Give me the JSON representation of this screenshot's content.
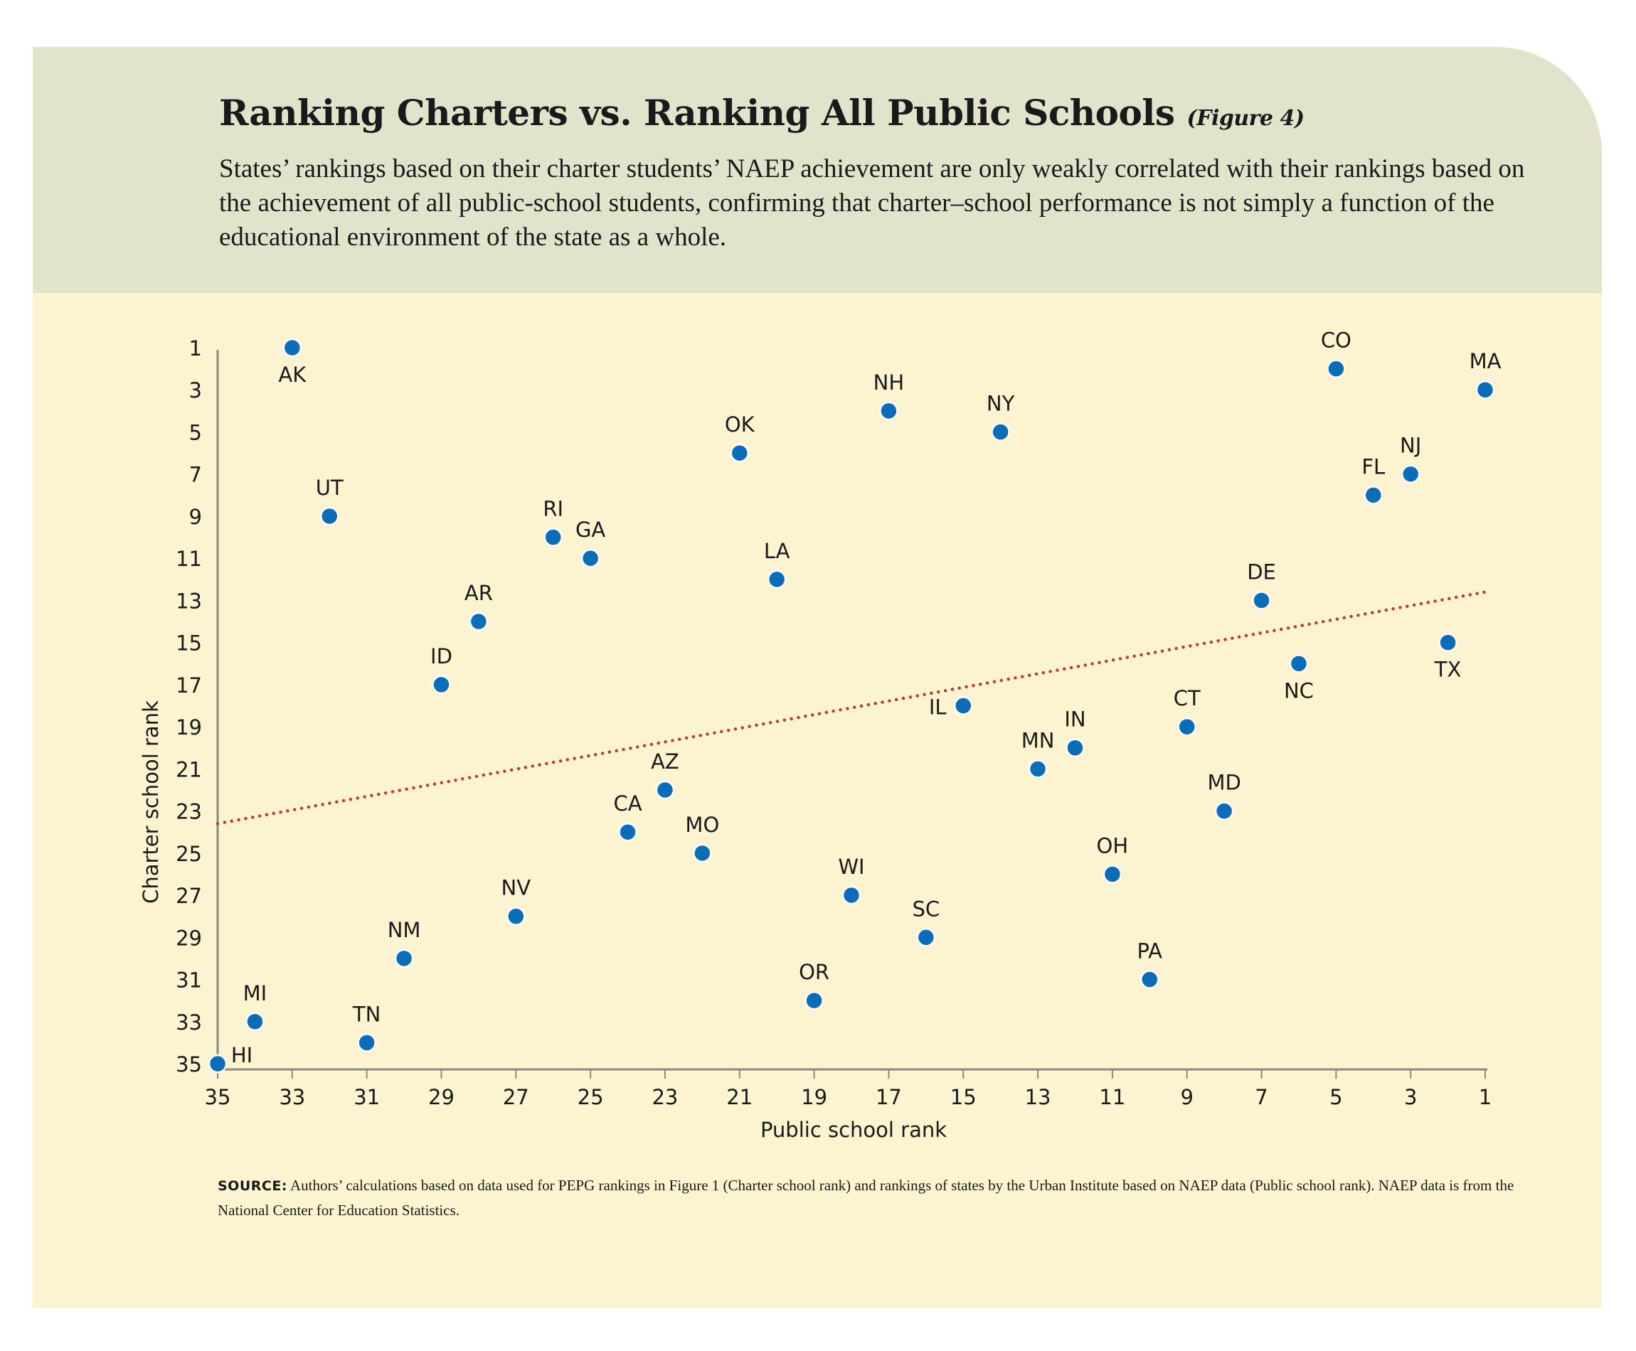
{
  "header": {
    "title": "Ranking Charters vs. Ranking All Public Schools",
    "figure_label": "(Figure 4)",
    "subtitle": "States’ rankings based on their charter students’ NAEP achievement are only weakly correlated with their rankings based on the achievement of all public-school students, confirming that charter–school performance is not simply a function of the educational environment of the state as a whole."
  },
  "source": {
    "label": "SOURCE:",
    "text": "Authors’ calculations based on data used for PEPG rankings in Figure 1 (Charter school rank) and rankings of states by the Urban Institute based on NAEP data (Public school rank). NAEP data is from the National Center for Education Statistics."
  },
  "colors": {
    "point": "#0b6cb8",
    "trendline": "#c0392b",
    "background": "#fcf3d1",
    "header_background": "#e2e3cb"
  },
  "chart_data": {
    "type": "scatter",
    "xlabel": "Public school rank",
    "ylabel": "Charter school rank",
    "xlim": [
      35,
      1
    ],
    "ylim": [
      35,
      1
    ],
    "x_reversed": true,
    "y_reversed": true,
    "xticks": [
      35,
      33,
      31,
      29,
      27,
      25,
      23,
      21,
      19,
      17,
      15,
      13,
      11,
      9,
      7,
      5,
      3,
      1
    ],
    "yticks": [
      1,
      3,
      5,
      7,
      9,
      11,
      13,
      15,
      17,
      19,
      21,
      23,
      25,
      27,
      29,
      31,
      33,
      35
    ],
    "points": [
      {
        "label": "AK",
        "x": 33,
        "y": 1
      },
      {
        "label": "CO",
        "x": 5,
        "y": 2
      },
      {
        "label": "MA",
        "x": 1,
        "y": 3
      },
      {
        "label": "NH",
        "x": 17,
        "y": 4
      },
      {
        "label": "NY",
        "x": 14,
        "y": 5
      },
      {
        "label": "OK",
        "x": 21,
        "y": 6
      },
      {
        "label": "NJ",
        "x": 3,
        "y": 7
      },
      {
        "label": "FL",
        "x": 4,
        "y": 8
      },
      {
        "label": "UT",
        "x": 32,
        "y": 9
      },
      {
        "label": "RI",
        "x": 26,
        "y": 10
      },
      {
        "label": "GA",
        "x": 25,
        "y": 11
      },
      {
        "label": "LA",
        "x": 20,
        "y": 12
      },
      {
        "label": "DE",
        "x": 7,
        "y": 13
      },
      {
        "label": "AR",
        "x": 28,
        "y": 14
      },
      {
        "label": "TX",
        "x": 2,
        "y": 15
      },
      {
        "label": "NC",
        "x": 6,
        "y": 16
      },
      {
        "label": "ID",
        "x": 29,
        "y": 17
      },
      {
        "label": "IL",
        "x": 15,
        "y": 18
      },
      {
        "label": "CT",
        "x": 9,
        "y": 19
      },
      {
        "label": "IN",
        "x": 12,
        "y": 20
      },
      {
        "label": "MN",
        "x": 13,
        "y": 21
      },
      {
        "label": "AZ",
        "x": 23,
        "y": 22
      },
      {
        "label": "MD",
        "x": 8,
        "y": 23
      },
      {
        "label": "CA",
        "x": 24,
        "y": 24
      },
      {
        "label": "MO",
        "x": 22,
        "y": 25
      },
      {
        "label": "OH",
        "x": 11,
        "y": 26
      },
      {
        "label": "WI",
        "x": 18,
        "y": 27
      },
      {
        "label": "NV",
        "x": 27,
        "y": 28
      },
      {
        "label": "SC",
        "x": 16,
        "y": 29
      },
      {
        "label": "NM",
        "x": 30,
        "y": 30
      },
      {
        "label": "PA",
        "x": 10,
        "y": 31
      },
      {
        "label": "OR",
        "x": 19,
        "y": 32
      },
      {
        "label": "MI",
        "x": 34,
        "y": 33
      },
      {
        "label": "TN",
        "x": 31,
        "y": 34
      },
      {
        "label": "HI",
        "x": 35,
        "y": 35
      }
    ],
    "trendline": {
      "style": "dotted",
      "from": {
        "x": 35,
        "y": 23.6
      },
      "to": {
        "x": 1,
        "y": 12.6
      }
    }
  }
}
